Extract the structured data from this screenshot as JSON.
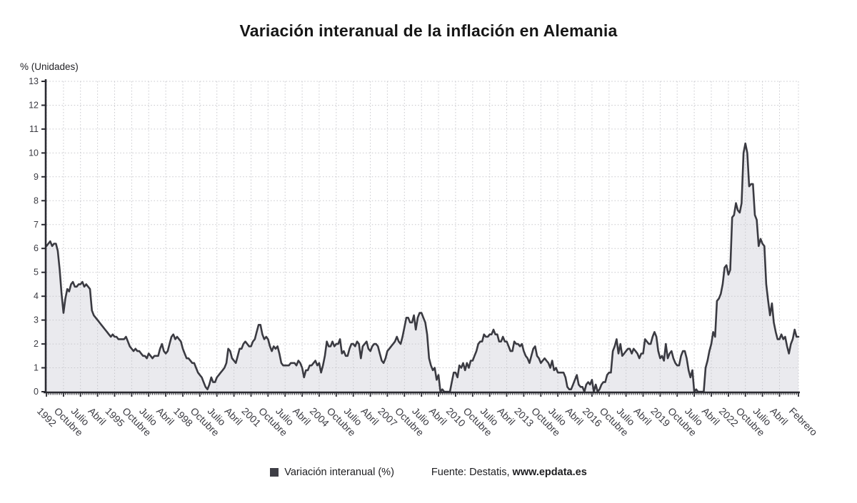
{
  "header": {
    "title": "Variación interanual de la inflación en Alemania"
  },
  "axis": {
    "y_unit_label": "% (Unidades)"
  },
  "legend": {
    "series_label": "Variación interanual (%)",
    "marker_color": "#3e3e46"
  },
  "source": {
    "prefix": "Fuente: Destatis,",
    "site": "www.epdata.es"
  },
  "chart_data": {
    "type": "line",
    "title": "Variación interanual de la inflación en Alemania",
    "xlabel": "",
    "ylabel": "% (Unidades)",
    "ylim": [
      0,
      13
    ],
    "y_ticks": [
      0,
      1,
      2,
      3,
      4,
      5,
      6,
      7,
      8,
      9,
      10,
      11,
      12,
      13
    ],
    "grid": true,
    "legend_position": "bottom",
    "x_unit": "month",
    "x_range": {
      "start": "Enero 1992",
      "end": "Febrero 2025"
    },
    "x_ticks": [
      {
        "index": 0,
        "label": "1992"
      },
      {
        "index": 9,
        "label": "Octubre"
      },
      {
        "index": 18,
        "label": "Julio"
      },
      {
        "index": 27,
        "label": "Abril"
      },
      {
        "index": 36,
        "label": "1995"
      },
      {
        "index": 45,
        "label": "Octubre"
      },
      {
        "index": 54,
        "label": "Julio"
      },
      {
        "index": 63,
        "label": "Abril"
      },
      {
        "index": 72,
        "label": "1998"
      },
      {
        "index": 81,
        "label": "Octubre"
      },
      {
        "index": 90,
        "label": "Julio"
      },
      {
        "index": 99,
        "label": "Abril"
      },
      {
        "index": 108,
        "label": "2001"
      },
      {
        "index": 117,
        "label": "Octubre"
      },
      {
        "index": 126,
        "label": "Julio"
      },
      {
        "index": 135,
        "label": "Abril"
      },
      {
        "index": 144,
        "label": "2004"
      },
      {
        "index": 153,
        "label": "Octubre"
      },
      {
        "index": 162,
        "label": "Julio"
      },
      {
        "index": 171,
        "label": "Abril"
      },
      {
        "index": 180,
        "label": "2007"
      },
      {
        "index": 189,
        "label": "Octubre"
      },
      {
        "index": 198,
        "label": "Julio"
      },
      {
        "index": 207,
        "label": "Abril"
      },
      {
        "index": 216,
        "label": "2010"
      },
      {
        "index": 225,
        "label": "Octubre"
      },
      {
        "index": 234,
        "label": "Julio"
      },
      {
        "index": 243,
        "label": "Abril"
      },
      {
        "index": 252,
        "label": "2013"
      },
      {
        "index": 261,
        "label": "Octubre"
      },
      {
        "index": 270,
        "label": "Julio"
      },
      {
        "index": 279,
        "label": "Abril"
      },
      {
        "index": 288,
        "label": "2016"
      },
      {
        "index": 297,
        "label": "Octubre"
      },
      {
        "index": 306,
        "label": "Julio"
      },
      {
        "index": 315,
        "label": "Abril"
      },
      {
        "index": 324,
        "label": "2019"
      },
      {
        "index": 333,
        "label": "Octubre"
      },
      {
        "index": 342,
        "label": "Julio"
      },
      {
        "index": 351,
        "label": "Abril"
      },
      {
        "index": 360,
        "label": "2022"
      },
      {
        "index": 369,
        "label": "Octubre"
      },
      {
        "index": 378,
        "label": "Julio"
      },
      {
        "index": 387,
        "label": "Abril"
      },
      {
        "index": 397,
        "label": "Febrero"
      }
    ],
    "series": [
      {
        "name": "Variación interanual (%)",
        "start_year": 1992,
        "start_month": 1,
        "frequency": "monthly",
        "values": [
          6.1,
          6.2,
          6.3,
          6.1,
          6.2,
          6.2,
          5.9,
          5.1,
          4.1,
          3.3,
          3.9,
          4.3,
          4.2,
          4.5,
          4.6,
          4.4,
          4.4,
          4.5,
          4.5,
          4.6,
          4.4,
          4.5,
          4.4,
          4.3,
          3.4,
          3.2,
          3.1,
          3.0,
          2.9,
          2.8,
          2.7,
          2.6,
          2.5,
          2.4,
          2.3,
          2.4,
          2.3,
          2.3,
          2.2,
          2.2,
          2.2,
          2.2,
          2.3,
          2.1,
          1.9,
          1.8,
          1.7,
          1.8,
          1.7,
          1.7,
          1.6,
          1.5,
          1.5,
          1.4,
          1.6,
          1.5,
          1.4,
          1.5,
          1.5,
          1.5,
          1.8,
          2.0,
          1.7,
          1.6,
          1.7,
          2.0,
          2.3,
          2.4,
          2.2,
          2.3,
          2.2,
          2.1,
          1.8,
          1.6,
          1.4,
          1.4,
          1.3,
          1.2,
          1.2,
          1.0,
          0.8,
          0.7,
          0.6,
          0.4,
          0.2,
          0.1,
          0.3,
          0.6,
          0.4,
          0.4,
          0.6,
          0.7,
          0.8,
          0.9,
          1.0,
          1.2,
          1.8,
          1.7,
          1.4,
          1.3,
          1.2,
          1.5,
          1.8,
          1.8,
          2.0,
          2.1,
          2.0,
          1.9,
          1.9,
          2.1,
          2.2,
          2.5,
          2.8,
          2.8,
          2.4,
          2.2,
          2.3,
          2.2,
          1.9,
          1.7,
          1.9,
          1.8,
          1.9,
          1.6,
          1.2,
          1.1,
          1.1,
          1.1,
          1.1,
          1.2,
          1.2,
          1.2,
          1.1,
          1.3,
          1.2,
          1.0,
          0.6,
          0.9,
          0.9,
          1.1,
          1.1,
          1.2,
          1.3,
          1.1,
          1.2,
          0.8,
          1.1,
          1.5,
          2.1,
          1.9,
          1.9,
          2.1,
          1.9,
          2.0,
          2.0,
          2.2,
          1.6,
          1.7,
          1.5,
          1.5,
          1.8,
          2.0,
          2.0,
          1.9,
          2.1,
          2.0,
          1.4,
          1.9,
          2.0,
          2.1,
          1.8,
          1.7,
          1.9,
          2.0,
          2.0,
          1.9,
          1.6,
          1.3,
          1.2,
          1.4,
          1.7,
          1.8,
          1.9,
          2.0,
          2.1,
          2.3,
          2.1,
          2.0,
          2.3,
          2.7,
          3.1,
          3.1,
          2.9,
          2.9,
          3.2,
          2.6,
          3.1,
          3.3,
          3.3,
          3.1,
          2.9,
          2.4,
          1.4,
          1.1,
          0.9,
          1.0,
          0.5,
          0.7,
          0.0,
          0.1,
          0.0,
          0.0,
          0.0,
          0.0,
          0.4,
          0.8,
          0.8,
          0.6,
          1.1,
          1.0,
          1.2,
          0.9,
          1.2,
          1.0,
          1.3,
          1.3,
          1.5,
          1.7,
          2.0,
          2.1,
          2.1,
          2.4,
          2.3,
          2.3,
          2.4,
          2.4,
          2.6,
          2.4,
          2.4,
          2.1,
          2.1,
          2.3,
          2.1,
          2.1,
          1.9,
          1.7,
          1.7,
          2.1,
          2.0,
          2.0,
          1.9,
          2.0,
          1.7,
          1.5,
          1.4,
          1.2,
          1.5,
          1.8,
          1.9,
          1.5,
          1.4,
          1.2,
          1.3,
          1.4,
          1.3,
          1.2,
          1.0,
          1.3,
          0.9,
          1.0,
          0.8,
          0.8,
          0.8,
          0.8,
          0.6,
          0.2,
          0.1,
          0.1,
          0.3,
          0.5,
          0.7,
          0.3,
          0.2,
          0.2,
          0.0,
          0.3,
          0.4,
          0.3,
          0.5,
          0.0,
          0.3,
          0.0,
          0.1,
          0.3,
          0.4,
          0.4,
          0.7,
          0.8,
          0.8,
          1.7,
          1.9,
          2.2,
          1.6,
          2.0,
          1.5,
          1.6,
          1.7,
          1.8,
          1.8,
          1.6,
          1.8,
          1.7,
          1.6,
          1.4,
          1.6,
          1.6,
          2.2,
          2.1,
          2.0,
          2.0,
          2.3,
          2.5,
          2.3,
          1.7,
          1.4,
          1.5,
          1.3,
          2.0,
          1.4,
          1.6,
          1.7,
          1.4,
          1.2,
          1.1,
          1.1,
          1.5,
          1.7,
          1.7,
          1.4,
          0.9,
          0.6,
          0.9,
          0.0,
          0.1,
          0.0,
          0.0,
          0.0,
          0.0,
          1.0,
          1.3,
          1.7,
          2.0,
          2.5,
          2.3,
          3.8,
          3.9,
          4.1,
          4.5,
          5.2,
          5.3,
          4.9,
          5.1,
          7.3,
          7.4,
          7.9,
          7.6,
          7.5,
          7.9,
          10.0,
          10.4,
          10.0,
          8.6,
          8.7,
          8.7,
          7.4,
          7.2,
          6.1,
          6.4,
          6.2,
          6.1,
          4.5,
          3.8,
          3.2,
          3.7,
          2.9,
          2.5,
          2.2,
          2.2,
          2.4,
          2.2,
          2.3,
          1.9,
          1.6,
          2.0,
          2.2,
          2.6,
          2.3,
          2.3
        ]
      }
    ],
    "colors": {
      "line": "#3b3b42",
      "fill": "#eaeaee",
      "grid": "#c7c7cc",
      "axis": "#2a2a31",
      "labels": "#3b3b42"
    }
  }
}
